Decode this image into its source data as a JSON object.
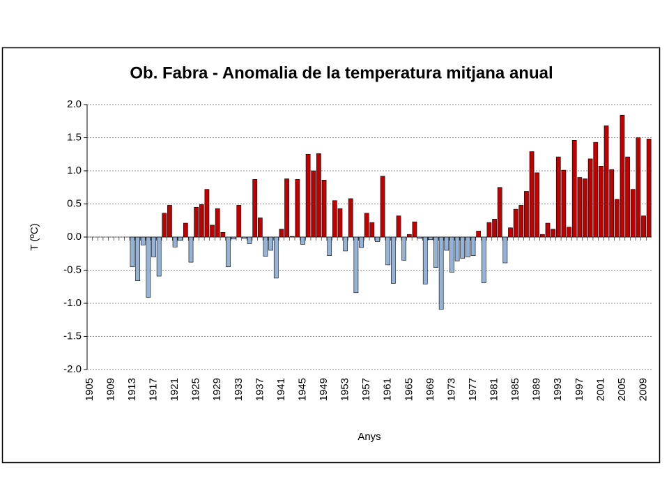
{
  "chart_data": {
    "type": "bar",
    "title": "Ob. Fabra - Anomalia de la temperatura mitjana anual",
    "xlabel": "Anys",
    "ylabel": "T (ºC)",
    "categories": [
      "1905",
      null,
      null,
      null,
      "1909",
      null,
      null,
      null,
      "1913",
      null,
      null,
      null,
      "1917",
      null,
      null,
      null,
      "1921",
      null,
      null,
      null,
      "1925",
      null,
      null,
      null,
      "1929",
      null,
      null,
      null,
      "1933",
      null,
      null,
      null,
      "1937",
      null,
      null,
      null,
      "1941",
      null,
      null,
      null,
      "1945",
      null,
      null,
      null,
      "1949",
      null,
      null,
      null,
      "1953",
      null,
      null,
      null,
      "1957",
      null,
      null,
      null,
      "1961",
      null,
      null,
      null,
      "1965",
      null,
      null,
      null,
      "1969",
      null,
      null,
      null,
      "1973",
      null,
      null,
      null,
      "1977",
      null,
      null,
      null,
      "1981",
      null,
      null,
      null,
      "1985",
      null,
      null,
      null,
      "1989",
      null,
      null,
      null,
      "1993",
      null,
      null,
      null,
      "1997",
      null,
      null,
      null,
      "2001",
      null,
      null,
      null,
      "2005",
      null,
      null,
      null,
      "2009",
      null
    ],
    "values": [
      null,
      null,
      null,
      null,
      null,
      null,
      null,
      null,
      -0.45,
      -0.66,
      -0.12,
      -0.91,
      -0.3,
      -0.59,
      0.36,
      0.48,
      -0.15,
      -0.05,
      0.21,
      -0.38,
      0.45,
      0.49,
      0.72,
      0.18,
      0.43,
      0.07,
      -0.45,
      -0.03,
      0.48,
      -0.02,
      -0.1,
      0.87,
      0.29,
      -0.29,
      -0.2,
      -0.62,
      0.12,
      0.88,
      0.01,
      0.87,
      -0.11,
      1.25,
      1.0,
      1.26,
      0.86,
      -0.28,
      0.55,
      0.43,
      -0.21,
      0.58,
      -0.84,
      -0.16,
      0.36,
      0.22,
      -0.07,
      0.92,
      -0.42,
      -0.7,
      0.32,
      -0.35,
      0.04,
      0.23,
      -0.02,
      -0.71,
      -0.04,
      -0.46,
      -1.09,
      -0.2,
      -0.53,
      -0.36,
      -0.32,
      -0.3,
      -0.28,
      0.09,
      -0.69,
      0.22,
      0.27,
      0.75,
      -0.39,
      0.14,
      0.42,
      0.48,
      0.69,
      1.29,
      0.97,
      0.04,
      0.21,
      0.12,
      1.21,
      1.01,
      0.15,
      1.46,
      0.9,
      0.88,
      1.18,
      1.43,
      1.07,
      1.68,
      1.02,
      0.57,
      1.84,
      1.21,
      0.72,
      1.5,
      0.32,
      1.48
    ],
    "positive_color": "#c00000",
    "negative_color": "#95b3d7",
    "ylim": [
      -2,
      2
    ],
    "yticks": [
      {
        "value": -2,
        "label": "-2.0"
      },
      {
        "value": -1.5,
        "label": "-1.5"
      },
      {
        "value": -1,
        "label": "-1.0"
      },
      {
        "value": -0.5,
        "label": "-0.5"
      },
      {
        "value": 0,
        "label": "0.0"
      },
      {
        "value": 0.5,
        "label": "0.5"
      },
      {
        "value": 1,
        "label": "1.0"
      },
      {
        "value": 1.5,
        "label": "1.5"
      },
      {
        "value": 2,
        "label": "2.0"
      }
    ],
    "grid": true
  }
}
